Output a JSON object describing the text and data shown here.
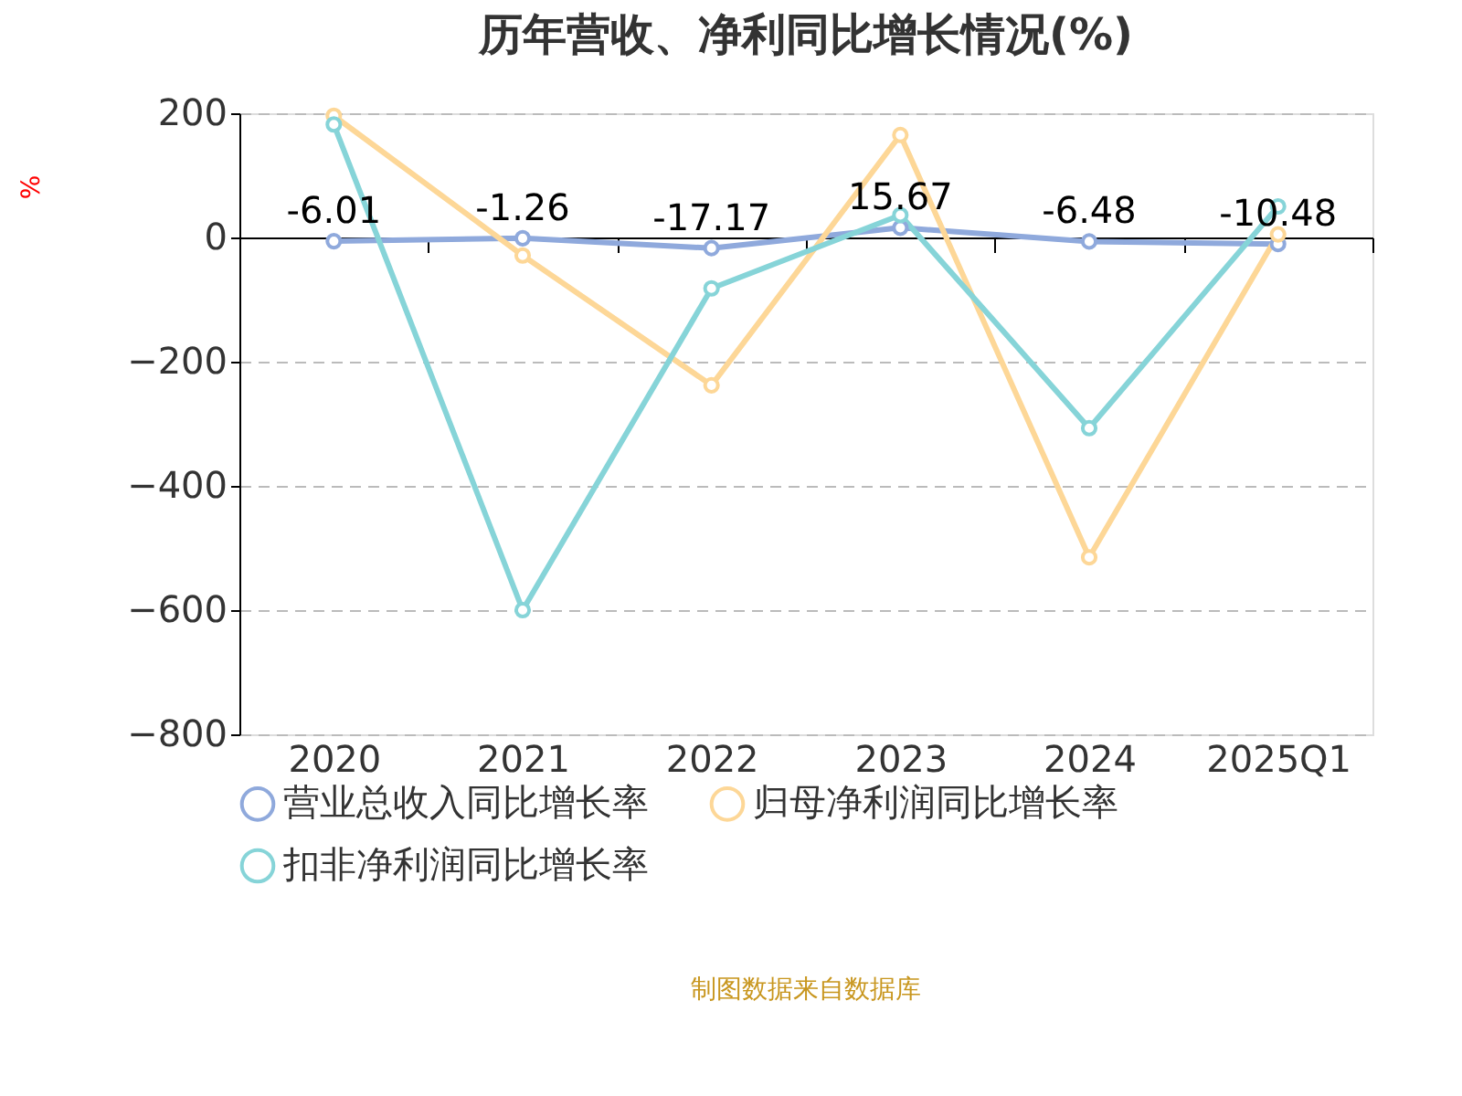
{
  "chart_data": {
    "type": "line",
    "title": "历年营收、净利同比增长情况(%)",
    "ylabel": "%",
    "categories": [
      "2020",
      "2021",
      "2022",
      "2023",
      "2024",
      "2025Q1"
    ],
    "series": [
      {
        "name": "营业总收入同比增长率",
        "color": "#8fa9dc",
        "values": [
          -6.01,
          -1.26,
          -17.17,
          15.67,
          -6.48,
          -10.48
        ],
        "value_labels": [
          "-6.01",
          "-1.26",
          "-17.17",
          "15.67",
          "-6.48",
          "-10.48"
        ]
      },
      {
        "name": "归母净利润同比增长率",
        "color": "#fdd797",
        "values": [
          196,
          -29,
          -238,
          165,
          -515,
          5
        ]
      },
      {
        "name": "扣非净利润同比增长率",
        "color": "#86d4d8",
        "values": [
          182,
          -600,
          -82,
          36,
          -307,
          50
        ]
      }
    ],
    "ylim": [
      -800,
      200
    ],
    "yticks": [
      -800,
      -600,
      -400,
      -200,
      0,
      200
    ],
    "grid": "y",
    "legend": "bottom",
    "marker": "circle",
    "line_style": "solid",
    "annotations": [
      "制图数据来自数据库"
    ]
  }
}
